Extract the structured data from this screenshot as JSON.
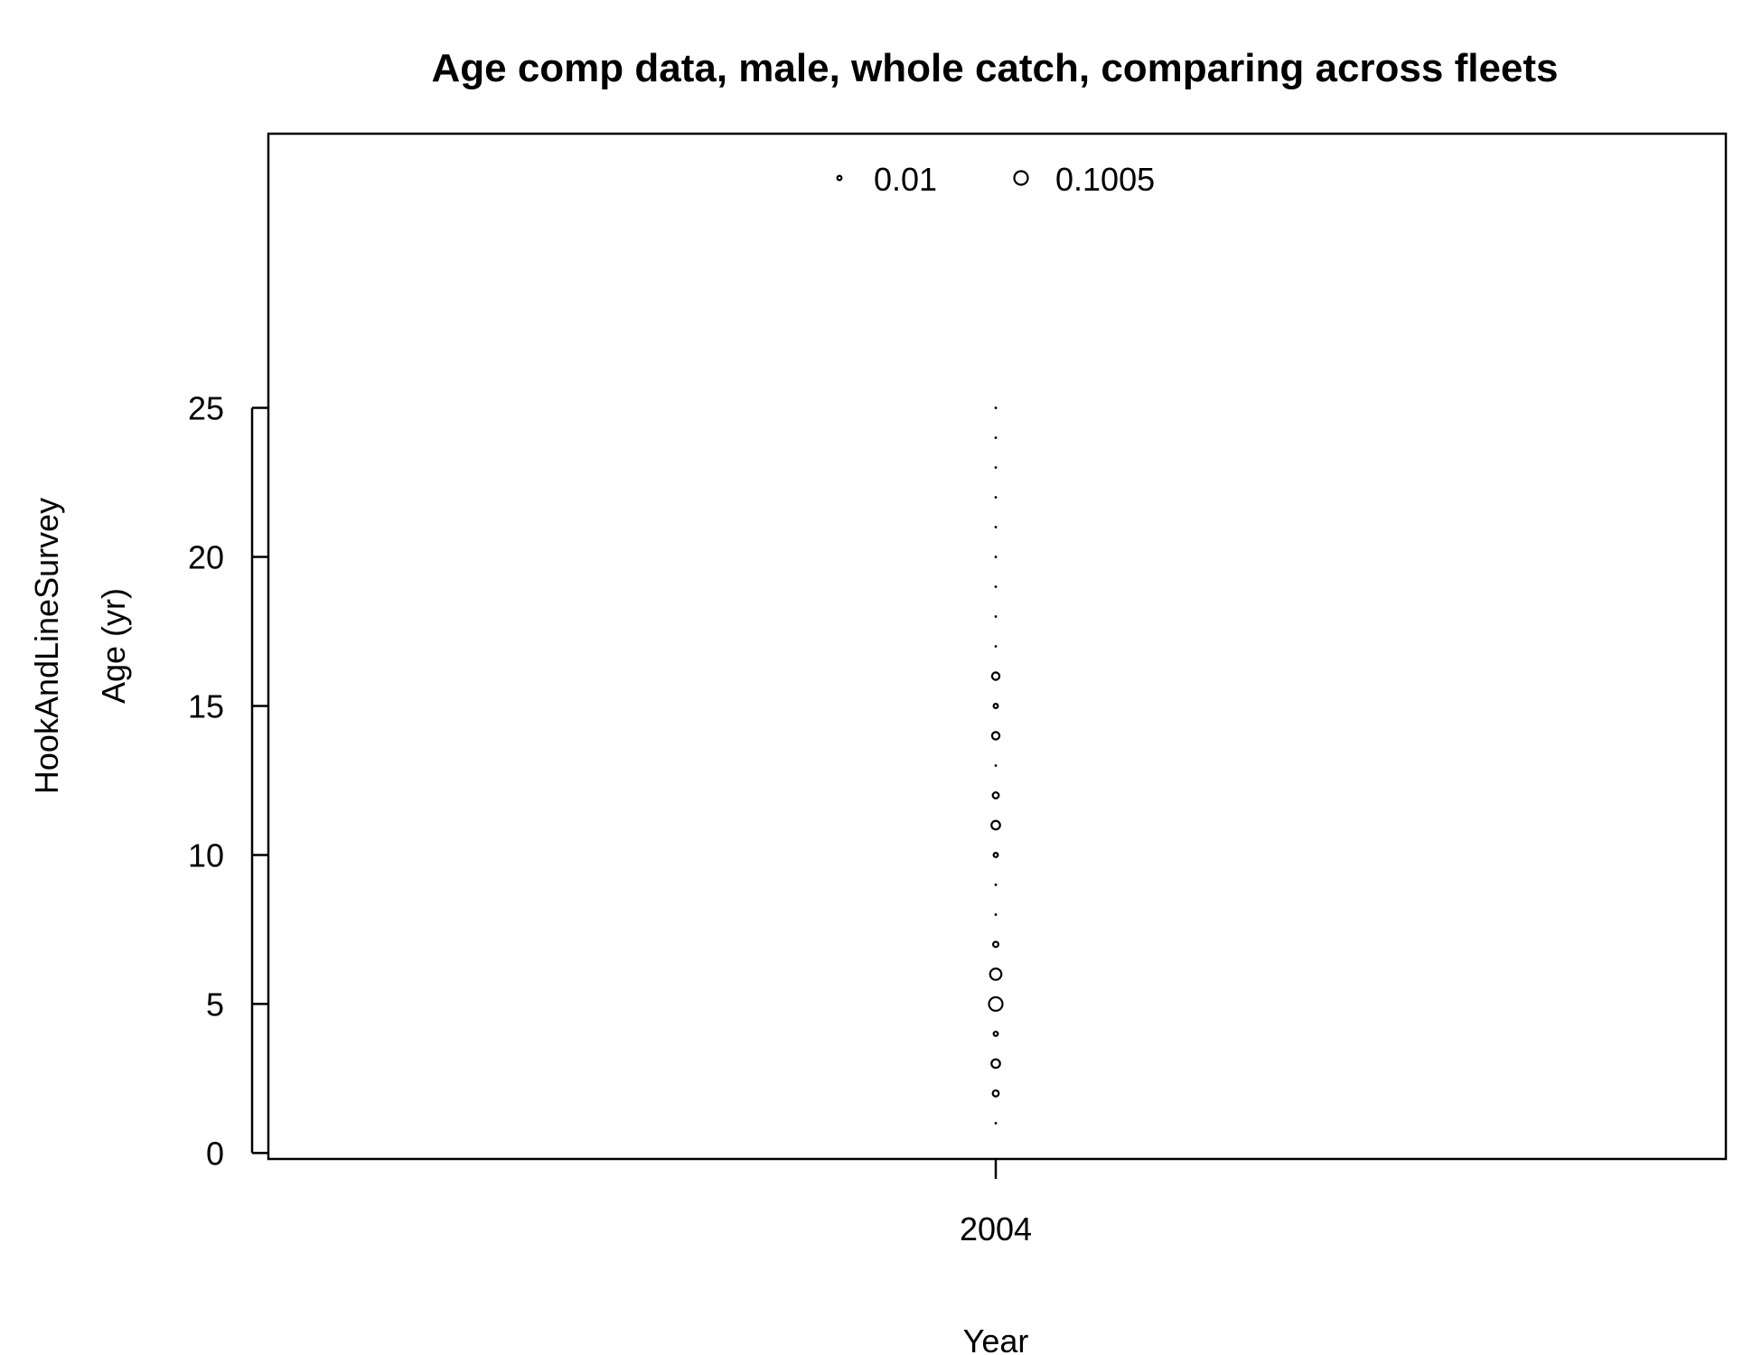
{
  "chart_data": {
    "type": "scatter",
    "subtype": "bubble",
    "title": "Age comp data, male, whole catch, comparing across fleets",
    "xlabel": "Year",
    "ylabel": "Age (yr)",
    "panel_label": "HookAndLineSurvey",
    "x_ticks": [
      2004
    ],
    "y_ticks": [
      0,
      5,
      10,
      15,
      20,
      25
    ],
    "ylim": [
      -0.2,
      34.2
    ],
    "legend": {
      "position": "top-center",
      "entries": [
        {
          "label": "0.01",
          "value": 0.01
        },
        {
          "label": "0.1005",
          "value": 0.1005
        }
      ]
    },
    "series": [
      {
        "x": 2004,
        "points": [
          {
            "age": 1,
            "value": 0.001
          },
          {
            "age": 2,
            "value": 0.02
          },
          {
            "age": 3,
            "value": 0.04
          },
          {
            "age": 4,
            "value": 0.01
          },
          {
            "age": 5,
            "value": 0.1005
          },
          {
            "age": 6,
            "value": 0.07
          },
          {
            "age": 7,
            "value": 0.015
          },
          {
            "age": 8,
            "value": 0.001
          },
          {
            "age": 9,
            "value": 0.001
          },
          {
            "age": 10,
            "value": 0.01
          },
          {
            "age": 11,
            "value": 0.04
          },
          {
            "age": 12,
            "value": 0.02
          },
          {
            "age": 13,
            "value": 0.001
          },
          {
            "age": 14,
            "value": 0.03
          },
          {
            "age": 15,
            "value": 0.01
          },
          {
            "age": 16,
            "value": 0.03
          },
          {
            "age": 17,
            "value": 0.001
          },
          {
            "age": 18,
            "value": 0.001
          },
          {
            "age": 19,
            "value": 0.001
          },
          {
            "age": 20,
            "value": 0.001
          },
          {
            "age": 21,
            "value": 0.001
          },
          {
            "age": 22,
            "value": 0.001
          },
          {
            "age": 23,
            "value": 0.001
          },
          {
            "age": 24,
            "value": 0.001
          },
          {
            "age": 25,
            "value": 0.001
          }
        ]
      }
    ]
  }
}
